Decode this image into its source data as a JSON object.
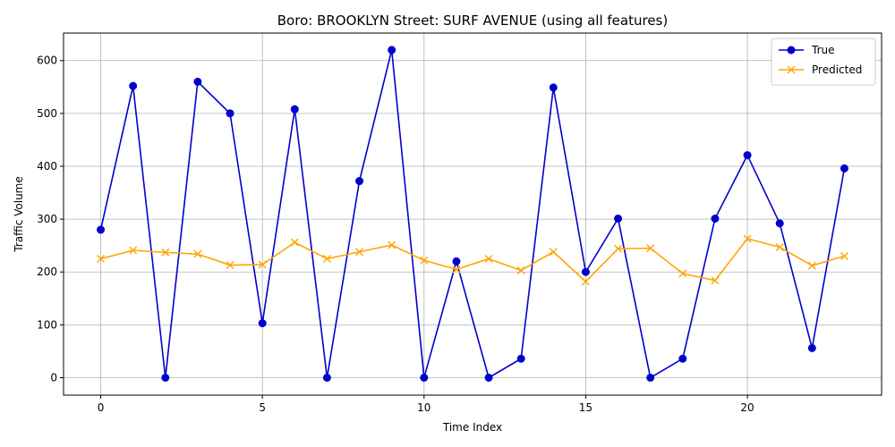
{
  "chart_data": {
    "type": "line",
    "title": "Boro: BROOKLYN Street: SURF AVENUE (using all features)",
    "xlabel": "Time Index",
    "ylabel": "Traffic Volume",
    "x": [
      0,
      1,
      2,
      3,
      4,
      5,
      6,
      7,
      8,
      9,
      10,
      11,
      12,
      13,
      14,
      15,
      16,
      17,
      18,
      19,
      20,
      21,
      22,
      23
    ],
    "xlim": [
      -1.15,
      24.15
    ],
    "ylim": [
      -33,
      652
    ],
    "xticks": [
      0,
      5,
      10,
      15,
      20
    ],
    "yticks": [
      0,
      100,
      200,
      300,
      400,
      500,
      600
    ],
    "grid": true,
    "legend_position": "upper-right",
    "series": [
      {
        "name": "True",
        "color": "#0000cd",
        "marker": "circle",
        "values": [
          280,
          552,
          0,
          560,
          500,
          103,
          508,
          0,
          372,
          620,
          0,
          220,
          0,
          36,
          549,
          200,
          301,
          0,
          36,
          301,
          421,
          292,
          56,
          396
        ]
      },
      {
        "name": "Predicted",
        "color": "#ffa500",
        "marker": "x",
        "values": [
          225,
          241,
          237,
          234,
          213,
          214,
          256,
          225,
          238,
          251,
          222,
          205,
          225,
          203,
          238,
          182,
          244,
          245,
          197,
          184,
          263,
          247,
          212,
          230
        ]
      }
    ]
  }
}
